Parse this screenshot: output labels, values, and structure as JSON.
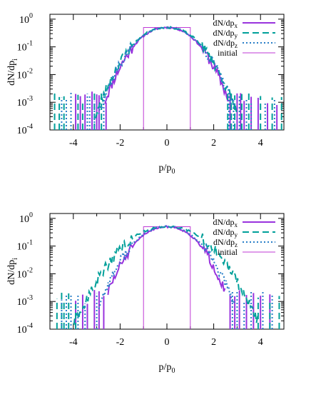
{
  "colors": {
    "px": "#9933dd",
    "py": "#00a09a",
    "pz": "#2a7fc8",
    "init": "#bf3ad6"
  },
  "chart_data": [
    {
      "type": "line",
      "title": "",
      "xlabel": "p/p",
      "xlabel_sub": "0",
      "ylabel": "dN/dp",
      "ylabel_sub": "i",
      "xlim": [
        -5,
        5
      ],
      "ylim": [
        0.0001,
        1.5
      ],
      "yscale": "log",
      "xticks": [
        "-4",
        "-2",
        "0",
        "2",
        "4"
      ],
      "yticks": [
        {
          "base": "10",
          "exp": "0"
        },
        {
          "base": "10",
          "exp": "-1"
        },
        {
          "base": "10",
          "exp": "-2"
        },
        {
          "base": "10",
          "exp": "-3"
        },
        {
          "base": "10",
          "exp": "-4"
        }
      ],
      "legend_position": "top-right",
      "legend": [
        {
          "main": "dN/dp",
          "sub": "x"
        },
        {
          "main": "dN/dp",
          "sub": "y"
        },
        {
          "main": "dN/dp",
          "sub": "z"
        },
        {
          "main": "initial",
          "sub": ""
        }
      ],
      "series": [
        {
          "key": "px",
          "style": "solid",
          "peak": 0.5,
          "width": 0.85,
          "wing": 1.0,
          "seed": 11,
          "spikes": [
            -3.9,
            -3.7,
            -3.5,
            -3.2,
            -3.0,
            -2.9,
            -2.6,
            2.7,
            3.0,
            3.15,
            3.3,
            3.6,
            3.9,
            4.3,
            4.7
          ]
        },
        {
          "key": "py",
          "style": "dashed",
          "peak": 0.5,
          "width": 0.9,
          "wing": 1.15,
          "seed": 23,
          "spikes": [
            -4.8,
            -4.6,
            -4.4,
            -3.8,
            -3.6,
            -3.1,
            -2.8,
            2.6,
            2.75,
            2.9,
            3.2,
            3.5,
            4.0,
            4.5,
            4.9
          ]
        },
        {
          "key": "pz",
          "style": "dotted",
          "peak": 0.5,
          "width": 0.88,
          "wing": 1.1,
          "seed": 37,
          "spikes": [
            -4.5,
            -4.3,
            -4.1,
            -3.4,
            -3.3,
            -3.1,
            -2.7,
            2.65,
            2.85,
            3.1,
            3.4,
            3.6,
            4.2,
            4.6
          ]
        }
      ],
      "initial": {
        "x": [
          -1,
          1
        ],
        "value": 0.5
      }
    },
    {
      "type": "line",
      "title": "",
      "xlabel": "p/p",
      "xlabel_sub": "0",
      "ylabel": "dN/dp",
      "ylabel_sub": "i",
      "xlim": [
        -5,
        5
      ],
      "ylim": [
        0.0001,
        1.5
      ],
      "yscale": "log",
      "xticks": [
        "-4",
        "-2",
        "0",
        "2",
        "4"
      ],
      "yticks": [
        {
          "base": "10",
          "exp": "0"
        },
        {
          "base": "10",
          "exp": "-1"
        },
        {
          "base": "10",
          "exp": "-2"
        },
        {
          "base": "10",
          "exp": "-3"
        },
        {
          "base": "10",
          "exp": "-4"
        }
      ],
      "legend_position": "top-right",
      "legend": [
        {
          "main": "dN/dp",
          "sub": "x"
        },
        {
          "main": "dN/dp",
          "sub": "y"
        },
        {
          "main": "dN/dp",
          "sub": "z"
        },
        {
          "main": "initial",
          "sub": ""
        }
      ],
      "series": [
        {
          "key": "px",
          "style": "solid",
          "peak": 0.5,
          "width": 0.85,
          "wing": 0.95,
          "seed": 51,
          "spikes": [
            -3.9,
            -3.6,
            -3.4,
            -3.1,
            -2.9,
            -2.7,
            2.7,
            2.9,
            3.1,
            3.4,
            3.7,
            4.0,
            4.4
          ]
        },
        {
          "key": "py",
          "style": "dashed",
          "peak": 0.5,
          "width": 1.1,
          "wing": 1.5,
          "seed": 63,
          "spikes": [
            -4.7,
            -4.5,
            -4.4,
            -4.2,
            -3.9,
            3.9,
            4.4,
            4.8
          ]
        },
        {
          "key": "pz",
          "style": "dotted",
          "peak": 0.5,
          "width": 0.9,
          "wing": 1.1,
          "seed": 77,
          "spikes": [
            -4.5,
            -4.3,
            -4.1,
            -3.8,
            -3.5,
            -3.0,
            2.8,
            3.0,
            3.3,
            3.6,
            4.1,
            4.5
          ]
        }
      ],
      "initial": {
        "x": [
          -1,
          1
        ],
        "value": 0.5
      }
    }
  ]
}
